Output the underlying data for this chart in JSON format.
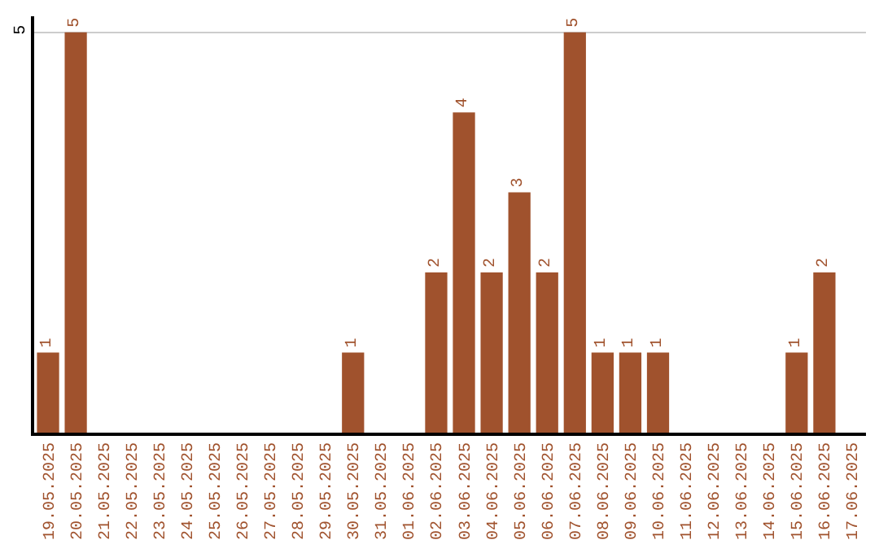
{
  "chart_data": {
    "type": "bar",
    "categories": [
      "19.05.2025",
      "20.05.2025",
      "21.05.2025",
      "22.05.2025",
      "23.05.2025",
      "24.05.2025",
      "25.05.2025",
      "26.05.2025",
      "27.05.2025",
      "28.05.2025",
      "29.05.2025",
      "30.05.2025",
      "31.05.2025",
      "01.06.2025",
      "02.06.2025",
      "03.06.2025",
      "04.06.2025",
      "05.06.2025",
      "06.06.2025",
      "07.06.2025",
      "08.06.2025",
      "09.06.2025",
      "10.06.2025",
      "11.06.2025",
      "12.06.2025",
      "13.06.2025",
      "14.06.2025",
      "15.06.2025",
      "16.06.2025",
      "17.06.2025"
    ],
    "values": [
      1,
      5,
      0,
      0,
      0,
      0,
      0,
      0,
      0,
      0,
      0,
      1,
      0,
      0,
      2,
      4,
      2,
      3,
      2,
      5,
      1,
      1,
      1,
      0,
      0,
      0,
      0,
      1,
      2,
      0
    ],
    "value_labels": [
      "1",
      "5",
      null,
      null,
      null,
      null,
      null,
      null,
      null,
      null,
      null,
      "1",
      null,
      null,
      "2",
      "4",
      "2",
      "3",
      "2",
      "5",
      "1",
      "1",
      "1",
      null,
      null,
      null,
      null,
      "1",
      "2",
      null
    ],
    "color": "#a0522d",
    "ylim": [
      0,
      5.2
    ],
    "yticks": [
      5
    ],
    "grid": "y",
    "legend": false
  }
}
